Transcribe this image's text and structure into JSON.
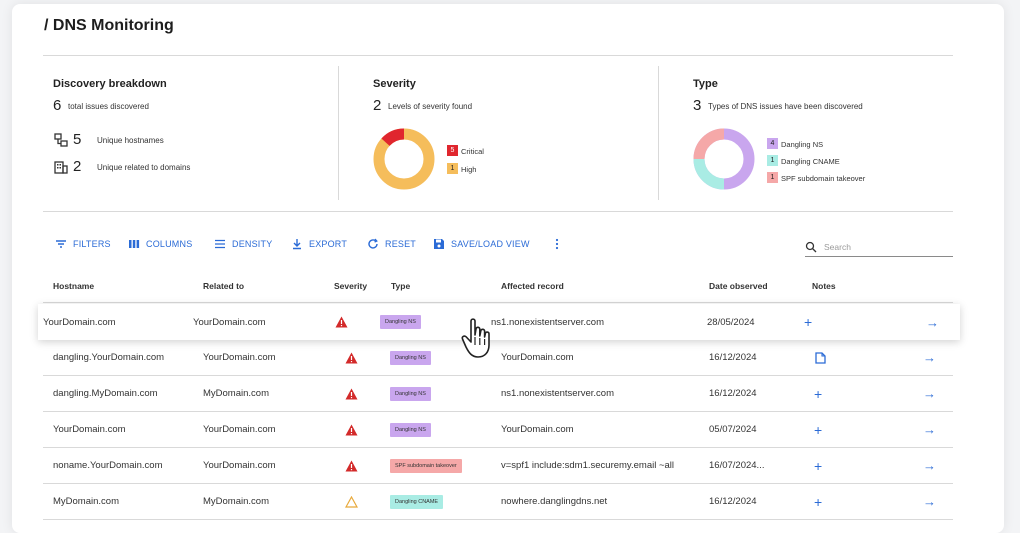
{
  "page": {
    "title": "/ DNS Monitoring"
  },
  "discovery": {
    "title": "Discovery breakdown",
    "total_num": "6",
    "total_label": "total issues discovered",
    "hostnames_num": "5",
    "hostnames_label": "Unique hostnames",
    "domains_num": "2",
    "domains_label": "Unique related to domains"
  },
  "severity": {
    "title": "Severity",
    "num": "2",
    "label": "Levels of severity found",
    "legend": [
      {
        "count": "5",
        "label": "Critical",
        "color": "#e0262e"
      },
      {
        "count": "1",
        "label": "High",
        "color": "#f5bd5b"
      }
    ]
  },
  "type": {
    "title": "Type",
    "num": "3",
    "label": "Types of DNS issues have been discovered",
    "legend": [
      {
        "count": "4",
        "label": "Dangling NS",
        "color": "#c9a6ee"
      },
      {
        "count": "1",
        "label": "Dangling CNAME",
        "color": "#a9ece4"
      },
      {
        "count": "1",
        "label": "SPF subdomain takeover",
        "color": "#f5a8a8"
      }
    ]
  },
  "toolbar": {
    "filters": "FILTERS",
    "columns": "COLUMNS",
    "density": "DENSITY",
    "export": "EXPORT",
    "reset": "RESET",
    "save_load": "SAVE/LOAD VIEW",
    "search_placeholder": "Search"
  },
  "table": {
    "headers": [
      "Hostname",
      "Related to",
      "Severity",
      "Type",
      "Affected record",
      "Date observed",
      "Notes"
    ],
    "rows": [
      {
        "hostname": "YourDomain.com",
        "related": "YourDomain.com",
        "severity": "critical",
        "type": "Dangling NS",
        "record": "ns1.nonexistentserver.com",
        "date": "28/05/2024",
        "note": "plus-icon"
      },
      {
        "hostname": "dangling.YourDomain.com",
        "related": "YourDomain.com",
        "severity": "critical",
        "type": "Dangling NS",
        "record": "YourDomain.com",
        "date": "16/12/2024",
        "note": "note-icon"
      },
      {
        "hostname": "dangling.MyDomain.com",
        "related": "MyDomain.com",
        "severity": "critical",
        "type": "Dangling NS",
        "record": "ns1.nonexistentserver.com",
        "date": "16/12/2024",
        "note": "plus-icon"
      },
      {
        "hostname": "YourDomain.com",
        "related": "YourDomain.com",
        "severity": "critical",
        "type": "Dangling NS",
        "record": "YourDomain.com",
        "date": "05/07/2024",
        "note": "plus-icon"
      },
      {
        "hostname": "noname.YourDomain.com",
        "related": "YourDomain.com",
        "severity": "critical",
        "type": "SPF subdomain takeover",
        "record": "v=spf1 include:sdm1.securemy.email ~all",
        "date": "16/07/2024...",
        "note": "plus-icon"
      },
      {
        "hostname": "MyDomain.com",
        "related": "MyDomain.com",
        "severity": "high",
        "type": "Dangling CNAME",
        "record": "nowhere.danglingdns.net",
        "date": "16/12/2024",
        "note": "plus-icon"
      }
    ]
  }
}
